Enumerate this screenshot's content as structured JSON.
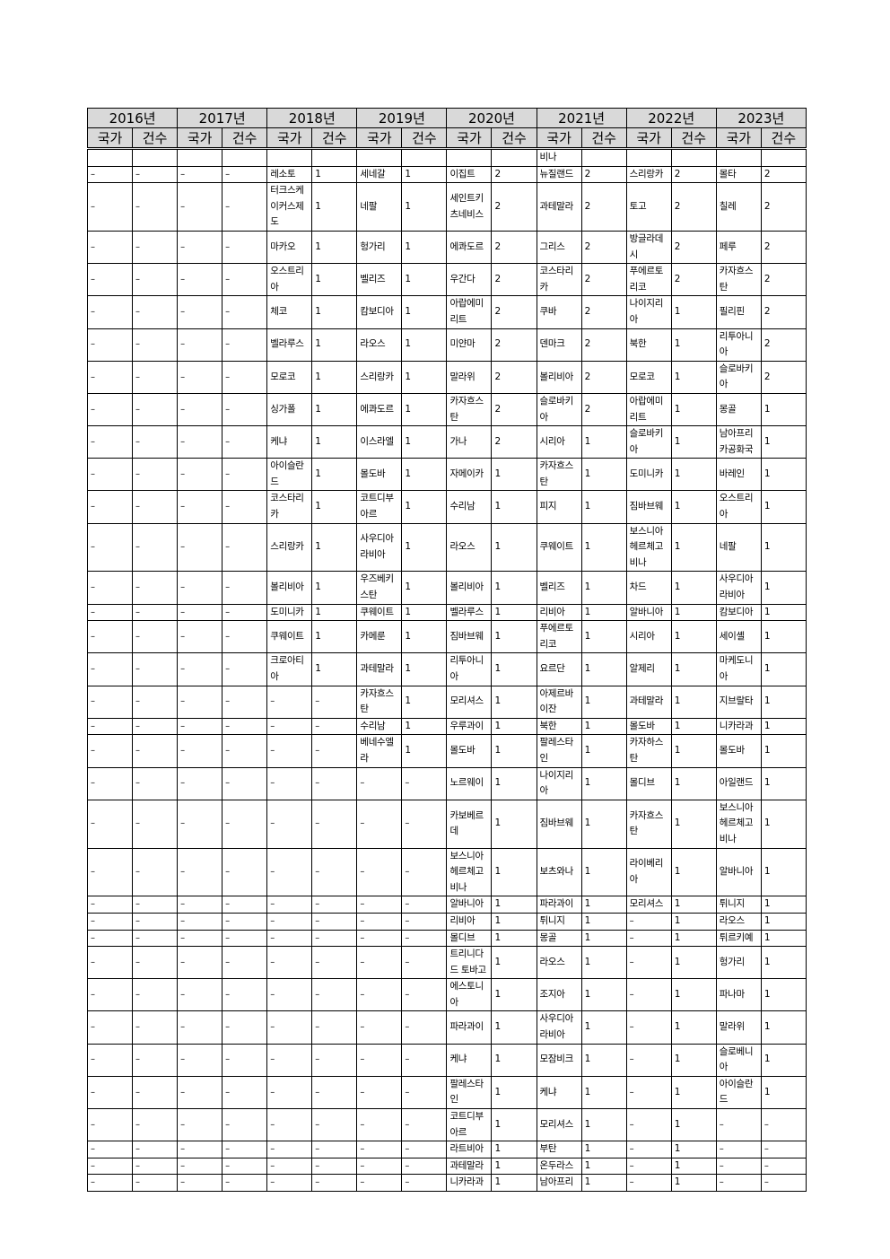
{
  "years": [
    "2016년",
    "2017년",
    "2018년",
    "2019년",
    "2020년",
    "2021년",
    "2022년",
    "2023년"
  ],
  "sub_headers": {
    "country": "국가",
    "count": "건수"
  },
  "rows": [
    [
      "",
      "",
      "",
      "",
      "",
      "",
      "",
      "",
      "",
      "",
      "비나",
      "",
      "",
      "",
      "",
      ""
    ],
    [
      "–",
      "–",
      "–",
      "–",
      "레소토",
      "1",
      "세네갈",
      "1",
      "이집트",
      "2",
      "뉴질랜드",
      "2",
      "스리랑카",
      "2",
      "몰타",
      "2"
    ],
    [
      "–",
      "–",
      "–",
      "–",
      "터크스케이커스제도",
      "1",
      "네팔",
      "1",
      "세인트키츠네비스",
      "2",
      "과테말라",
      "2",
      "토고",
      "2",
      "칠레",
      "2"
    ],
    [
      "–",
      "–",
      "–",
      "–",
      "마카오",
      "1",
      "헝가리",
      "1",
      "에콰도르",
      "2",
      "그리스",
      "2",
      "방글라데시",
      "2",
      "페루",
      "2"
    ],
    [
      "–",
      "–",
      "–",
      "–",
      "오스트리아",
      "1",
      "벨리즈",
      "1",
      "우간다",
      "2",
      "코스타리카",
      "2",
      "푸에르토리코",
      "2",
      "카자흐스탄",
      "2"
    ],
    [
      "–",
      "–",
      "–",
      "–",
      "체코",
      "1",
      "캄보디아",
      "1",
      "아랍에미리트",
      "2",
      "쿠바",
      "2",
      "나이지리아",
      "1",
      "필리핀",
      "2"
    ],
    [
      "–",
      "–",
      "–",
      "–",
      "벨라루스",
      "1",
      "라오스",
      "1",
      "미얀마",
      "2",
      "덴마크",
      "2",
      "북한",
      "1",
      "리투아니아",
      "2"
    ],
    [
      "–",
      "–",
      "–",
      "–",
      "모로코",
      "1",
      "스리랑카",
      "1",
      "말라위",
      "2",
      "볼리비아",
      "2",
      "모로코",
      "1",
      "슬로바키아",
      "2"
    ],
    [
      "–",
      "–",
      "–",
      "–",
      "싱가폴",
      "1",
      "에콰도르",
      "1",
      "카자흐스탄",
      "2",
      "슬로바키아",
      "2",
      "아랍에미리트",
      "1",
      "몽골",
      "1"
    ],
    [
      "–",
      "–",
      "–",
      "–",
      "케냐",
      "1",
      "이스라엘",
      "1",
      "가나",
      "2",
      "시리아",
      "1",
      "슬로바키아",
      "1",
      "남아프리카공화국",
      "1"
    ],
    [
      "–",
      "–",
      "–",
      "–",
      "아이슬란드",
      "1",
      "몰도바",
      "1",
      "자메이카",
      "1",
      "카자흐스탄",
      "1",
      "도미니카",
      "1",
      "바레인",
      "1"
    ],
    [
      "–",
      "–",
      "–",
      "–",
      "코스타리카",
      "1",
      "코트디부아르",
      "1",
      "수리남",
      "1",
      "피지",
      "1",
      "짐바브웨",
      "1",
      "오스트리아",
      "1"
    ],
    [
      "–",
      "–",
      "–",
      "–",
      "스리랑카",
      "1",
      "사우디아라비아",
      "1",
      "라오스",
      "1",
      "쿠웨이트",
      "1",
      "보스니아헤르체고비나",
      "1",
      "네팔",
      "1"
    ],
    [
      "–",
      "–",
      "–",
      "–",
      "볼리비아",
      "1",
      "우즈베키스탄",
      "1",
      "볼리비아",
      "1",
      "벨리즈",
      "1",
      "차드",
      "1",
      "사우디아라비아",
      "1"
    ],
    [
      "–",
      "–",
      "–",
      "–",
      "도미니카",
      "1",
      "쿠웨이트",
      "1",
      "벨라루스",
      "1",
      "리비아",
      "1",
      "알바니아",
      "1",
      "캄보디아",
      "1"
    ],
    [
      "–",
      "–",
      "–",
      "–",
      "쿠웨이트",
      "1",
      "카메룬",
      "1",
      "짐바브웨",
      "1",
      "푸에르토리코",
      "1",
      "시리아",
      "1",
      "세이셸",
      "1"
    ],
    [
      "–",
      "–",
      "–",
      "–",
      "크로아티아",
      "1",
      "과테말라",
      "1",
      "리투아니아",
      "1",
      "요르단",
      "1",
      "알제리",
      "1",
      "마케도니아",
      "1"
    ],
    [
      "–",
      "–",
      "–",
      "–",
      "–",
      "–",
      "카자흐스탄",
      "1",
      "모리셔스",
      "1",
      "아제르바이잔",
      "1",
      "과테말라",
      "1",
      "지브랄타",
      "1"
    ],
    [
      "–",
      "–",
      "–",
      "–",
      "–",
      "–",
      "수리남",
      "1",
      "우루과이",
      "1",
      "북한",
      "1",
      "몰도바",
      "1",
      "니카라과",
      "1"
    ],
    [
      "–",
      "–",
      "–",
      "–",
      "–",
      "–",
      "베네수엘라",
      "1",
      "몰도바",
      "1",
      "팔레스타인",
      "1",
      "카자하스탄",
      "1",
      "몰도바",
      "1"
    ],
    [
      "–",
      "–",
      "–",
      "–",
      "–",
      "–",
      "–",
      "–",
      "노르웨이",
      "1",
      "나이지리아",
      "1",
      "몰디브",
      "1",
      "아일랜드",
      "1"
    ],
    [
      "–",
      "–",
      "–",
      "–",
      "–",
      "–",
      "–",
      "–",
      "카보베르데",
      "1",
      "짐바브웨",
      "1",
      "카자흐스탄",
      "1",
      "보스니아헤르체고비나",
      "1"
    ],
    [
      "–",
      "–",
      "–",
      "–",
      "–",
      "–",
      "–",
      "–",
      "보스니아헤르체고비나",
      "1",
      "보츠와나",
      "1",
      "라이베리아",
      "1",
      "알바니아",
      "1"
    ],
    [
      "–",
      "–",
      "–",
      "–",
      "–",
      "–",
      "–",
      "–",
      "알바니아",
      "1",
      "파라과이",
      "1",
      "모리셔스",
      "1",
      "튀니지",
      "1"
    ],
    [
      "–",
      "–",
      "–",
      "–",
      "–",
      "–",
      "–",
      "–",
      "리비아",
      "1",
      "튀니지",
      "1",
      "–",
      "1",
      "라오스",
      "1"
    ],
    [
      "–",
      "–",
      "–",
      "–",
      "–",
      "–",
      "–",
      "–",
      "몰디브",
      "1",
      "몽골",
      "1",
      "–",
      "1",
      "튀르키예",
      "1"
    ],
    [
      "–",
      "–",
      "–",
      "–",
      "–",
      "–",
      "–",
      "–",
      "트리니다드 토바고",
      "1",
      "라오스",
      "1",
      "–",
      "1",
      "헝가리",
      "1"
    ],
    [
      "–",
      "–",
      "–",
      "–",
      "–",
      "–",
      "–",
      "–",
      "에스토니아",
      "1",
      "조지아",
      "1",
      "–",
      "1",
      "파나마",
      "1"
    ],
    [
      "–",
      "–",
      "–",
      "–",
      "–",
      "–",
      "–",
      "–",
      "파라과이",
      "1",
      "사우디아라비아",
      "1",
      "–",
      "1",
      "말라위",
      "1"
    ],
    [
      "–",
      "–",
      "–",
      "–",
      "–",
      "–",
      "–",
      "–",
      "케냐",
      "1",
      "모잠비크",
      "1",
      "–",
      "1",
      "슬로베니아",
      "1"
    ],
    [
      "–",
      "–",
      "–",
      "–",
      "–",
      "–",
      "–",
      "–",
      "팔레스타인",
      "1",
      "케냐",
      "1",
      "–",
      "1",
      "아이슬란드",
      "1"
    ],
    [
      "–",
      "–",
      "–",
      "–",
      "–",
      "–",
      "–",
      "–",
      "코트디부아르",
      "1",
      "모리셔스",
      "1",
      "–",
      "1",
      "–",
      "–"
    ],
    [
      "–",
      "–",
      "–",
      "–",
      "–",
      "–",
      "–",
      "–",
      "라트비아",
      "1",
      "부탄",
      "1",
      "–",
      "1",
      "–",
      "–"
    ],
    [
      "–",
      "–",
      "–",
      "–",
      "–",
      "–",
      "–",
      "–",
      "과테말라",
      "1",
      "온두라스",
      "1",
      "–",
      "1",
      "–",
      "–"
    ],
    [
      "–",
      "–",
      "–",
      "–",
      "–",
      "–",
      "–",
      "–",
      "니카라과",
      "1",
      "남아프리",
      "1",
      "–",
      "1",
      "–",
      "–"
    ]
  ]
}
